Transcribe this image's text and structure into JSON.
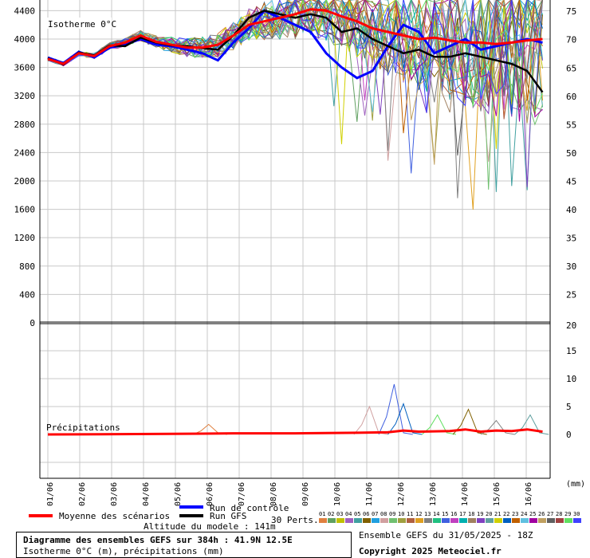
{
  "chart_data": [
    {
      "type": "line",
      "title": "Isotherme 0°C",
      "x_categories": [
        "01/06",
        "02/06",
        "03/06",
        "04/06",
        "05/06",
        "06/06",
        "07/06",
        "08/06",
        "09/06",
        "10/06",
        "11/06",
        "12/06",
        "13/06",
        "14/06",
        "15/06",
        "16/06"
      ],
      "x_range_days": [
        0,
        16
      ],
      "y_left": {
        "ticks": [
          0,
          400,
          800,
          1200,
          1600,
          2000,
          2400,
          2800,
          3200,
          3600,
          4000,
          4400
        ],
        "range": [
          0,
          4550
        ]
      },
      "y_right": {
        "ticks": [
          25,
          30,
          35,
          40,
          45,
          50,
          55,
          60,
          65,
          70,
          75
        ],
        "range": [
          20,
          76
        ]
      },
      "grid": true,
      "series": [
        {
          "name": "Moyenne des scénarios",
          "color": "#ff0000",
          "points": [
            [
              0,
              3720
            ],
            [
              0.5,
              3650
            ],
            [
              1,
              3800
            ],
            [
              1.5,
              3760
            ],
            [
              2,
              3900
            ],
            [
              2.5,
              3950
            ],
            [
              3,
              4050
            ],
            [
              3.5,
              3960
            ],
            [
              4,
              3920
            ],
            [
              4.5,
              3880
            ],
            [
              5,
              3880
            ],
            [
              5.5,
              3920
            ],
            [
              6,
              4050
            ],
            [
              6.5,
              4200
            ],
            [
              7,
              4250
            ],
            [
              7.5,
              4300
            ],
            [
              8,
              4350
            ],
            [
              8.5,
              4420
            ],
            [
              9,
              4400
            ],
            [
              9.5,
              4320
            ],
            [
              10,
              4250
            ],
            [
              10.5,
              4150
            ],
            [
              11,
              4100
            ],
            [
              11.5,
              4050
            ],
            [
              12,
              4000
            ],
            [
              12.5,
              4020
            ],
            [
              13,
              3980
            ],
            [
              13.5,
              3950
            ],
            [
              14,
              3950
            ],
            [
              14.5,
              3930
            ],
            [
              15,
              3950
            ],
            [
              15.5,
              3980
            ],
            [
              16,
              4000
            ]
          ]
        },
        {
          "name": "Run de contrôle",
          "color": "#0000ff",
          "points": [
            [
              0,
              3740
            ],
            [
              0.5,
              3660
            ],
            [
              1,
              3820
            ],
            [
              1.5,
              3740
            ],
            [
              2,
              3880
            ],
            [
              2.5,
              3920
            ],
            [
              3,
              4000
            ],
            [
              3.5,
              3920
            ],
            [
              4,
              3900
            ],
            [
              4.5,
              3850
            ],
            [
              5,
              3800
            ],
            [
              5.5,
              3700
            ],
            [
              6,
              3950
            ],
            [
              6.5,
              4150
            ],
            [
              7,
              4400
            ],
            [
              7.5,
              4300
            ],
            [
              8,
              4200
            ],
            [
              8.5,
              4100
            ],
            [
              9,
              3800
            ],
            [
              9.5,
              3600
            ],
            [
              10,
              3450
            ],
            [
              10.5,
              3550
            ],
            [
              11,
              3900
            ],
            [
              11.5,
              4200
            ],
            [
              12,
              4100
            ],
            [
              12.5,
              3800
            ],
            [
              13,
              3900
            ],
            [
              13.5,
              4000
            ],
            [
              14,
              3850
            ],
            [
              14.5,
              3900
            ],
            [
              15,
              3950
            ],
            [
              15.5,
              4000
            ],
            [
              16,
              3950
            ]
          ]
        },
        {
          "name": "Run GFS",
          "color": "#000000",
          "points": [
            [
              0,
              3730
            ],
            [
              0.5,
              3640
            ],
            [
              1,
              3810
            ],
            [
              1.5,
              3770
            ],
            [
              2,
              3910
            ],
            [
              2.5,
              3900
            ],
            [
              3,
              4020
            ],
            [
              3.5,
              3950
            ],
            [
              4,
              3910
            ],
            [
              4.5,
              3900
            ],
            [
              5,
              3870
            ],
            [
              5.5,
              3850
            ],
            [
              6,
              4050
            ],
            [
              6.5,
              4300
            ],
            [
              7,
              4400
            ],
            [
              7.5,
              4350
            ],
            [
              8,
              4300
            ],
            [
              8.5,
              4350
            ],
            [
              9,
              4300
            ],
            [
              9.5,
              4100
            ],
            [
              10,
              4150
            ],
            [
              10.5,
              4000
            ],
            [
              11,
              3900
            ],
            [
              11.5,
              3800
            ],
            [
              12,
              3850
            ],
            [
              12.5,
              3750
            ],
            [
              13,
              3750
            ],
            [
              13.5,
              3800
            ],
            [
              14,
              3750
            ],
            [
              14.5,
              3700
            ],
            [
              15,
              3650
            ],
            [
              15.5,
              3550
            ],
            [
              16,
              3250
            ]
          ]
        }
      ],
      "perturbations_count": 30
    },
    {
      "type": "line",
      "title": "Précipitations",
      "y_right": {
        "ticks": [
          0,
          5,
          10,
          15,
          20
        ],
        "range": [
          -8,
          20
        ]
      },
      "unit": "(mm)",
      "series": [
        {
          "name": "Moyenne des scénarios",
          "color": "#ff0000",
          "points": [
            [
              0,
              0
            ],
            [
              4,
              0.1
            ],
            [
              6,
              0.2
            ],
            [
              8,
              0.2
            ],
            [
              10,
              0.3
            ],
            [
              11,
              0.4
            ],
            [
              11.5,
              0.7
            ],
            [
              12,
              0.5
            ],
            [
              13,
              0.6
            ],
            [
              13.5,
              0.9
            ],
            [
              14,
              0.5
            ],
            [
              14.5,
              0.7
            ],
            [
              15,
              0.6
            ],
            [
              15.5,
              0.9
            ],
            [
              16,
              0.5
            ]
          ]
        }
      ],
      "member_peaks": [
        {
          "day": 5.2,
          "value": 1.8
        },
        {
          "day": 10.4,
          "value": 5.0
        },
        {
          "day": 11.2,
          "value": 9.0
        },
        {
          "day": 11.5,
          "value": 5.5
        },
        {
          "day": 12.6,
          "value": 3.5
        },
        {
          "day": 13.6,
          "value": 4.5
        },
        {
          "day": 14.5,
          "value": 2.5
        },
        {
          "day": 15.6,
          "value": 3.5
        }
      ]
    }
  ],
  "legend": {
    "mean": "Moyenne des scénarios",
    "control": "Run de contrôle",
    "gfs": "Run GFS",
    "perts": "30 Perts.",
    "pert_numbers": [
      "01",
      "02",
      "03",
      "04",
      "05",
      "06",
      "07",
      "08",
      "09",
      "10",
      "11",
      "12",
      "13",
      "14",
      "15",
      "16",
      "17",
      "18",
      "19",
      "20",
      "21",
      "22",
      "23",
      "24",
      "25",
      "26",
      "27",
      "28",
      "29",
      "30"
    ],
    "pert_colors": [
      "#e08040",
      "#60a060",
      "#c0c000",
      "#a060c0",
      "#40a0a0",
      "#806000",
      "#20a0e0",
      "#d0a0a0",
      "#70c070",
      "#a0a040",
      "#b06040",
      "#e0a020",
      "#808080",
      "#20c080",
      "#4060e0",
      "#c040c0",
      "#00b0b0",
      "#a08060",
      "#8040c0",
      "#60a0a0",
      "#d0d000",
      "#0060c0",
      "#c06000",
      "#60c0e0",
      "#a000a0",
      "#c0a060",
      "#606060",
      "#a04040",
      "#60e060",
      "#4040ff"
    ],
    "altitude": "Altitude du modele : 141m"
  },
  "footer": {
    "title": "Diagramme des ensembles GEFS sur 384h : 41.9N 12.5E",
    "subtitle": "Isotherme 0°C (m), précipitations (mm)",
    "run": "Ensemble GEFS du 31/05/2025 - 18Z",
    "copyright": "Copyright 2025 Meteociel.fr"
  }
}
